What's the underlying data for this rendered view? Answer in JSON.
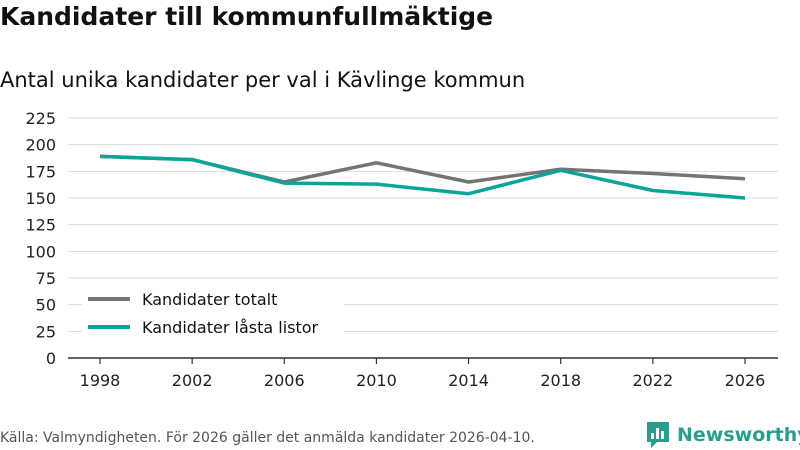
{
  "header": {
    "title": "Kandidater till kommunfullmäktige",
    "subtitle": "Antal unika kandidater per val i Kävlinge kommun"
  },
  "footer": {
    "source": "Källa: Valmyndigheten. För 2026 gäller det anmälda kandidater 2026-04-10.",
    "brand": "Newsworthy"
  },
  "colors": {
    "totalt": "#747474",
    "lasta": "#0aa59a",
    "grid": "#dddddd",
    "axis": "#333333",
    "brand": "#2a9d8f"
  },
  "chart_data": {
    "type": "line",
    "title": "Kandidater till kommunfullmäktige",
    "subtitle": "Antal unika kandidater per val i Kävlinge kommun",
    "xlabel": "",
    "ylabel": "",
    "x": [
      "1998",
      "2002",
      "2006",
      "2010",
      "2014",
      "2018",
      "2022",
      "2026"
    ],
    "ylim": [
      0,
      225
    ],
    "yticks": [
      0,
      25,
      50,
      75,
      100,
      125,
      150,
      175,
      200,
      225
    ],
    "grid": true,
    "legend": "bottom-left",
    "series": [
      {
        "name": "Kandidater totalt",
        "color": "#747474",
        "values": [
          189,
          186,
          165,
          183,
          165,
          177,
          173,
          168
        ]
      },
      {
        "name": "Kandidater låsta listor",
        "color": "#0aa59a",
        "values": [
          189,
          186,
          164,
          163,
          154,
          176,
          157,
          150
        ]
      }
    ]
  }
}
